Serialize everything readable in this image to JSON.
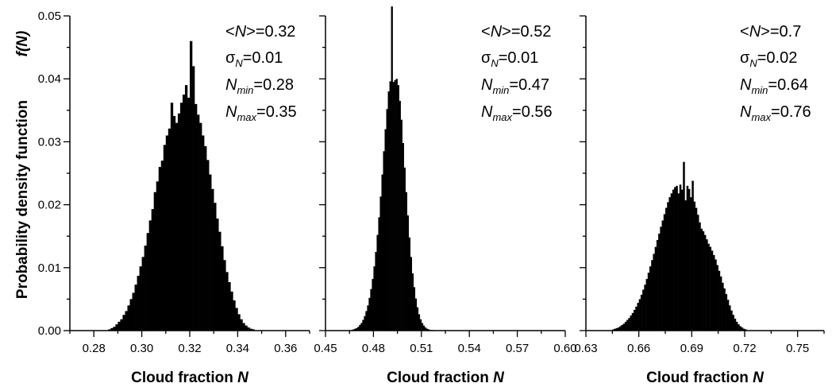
{
  "figure": {
    "ylabel": "Probability density function",
    "ylabel_symbol": "f(N)"
  },
  "chart_data": [
    {
      "type": "bar",
      "xlabel_text": "Cloud fraction ",
      "xlabel_symbol": "N",
      "xlim": [
        0.27,
        0.37
      ],
      "ylim": [
        0.0,
        0.05
      ],
      "xticks": [
        "0.28",
        "0.30",
        "0.32",
        "0.34",
        "0.36"
      ],
      "yticks": [
        "0.00",
        "0.01",
        "0.02",
        "0.03",
        "0.04",
        "0.05"
      ],
      "stats": {
        "mean": "=0.32",
        "sigma": "=0.01",
        "nmin": "=0.28",
        "nmax": "=0.35"
      },
      "bin_start": 0.286,
      "bin_width": 0.001,
      "values": [
        0.0002,
        0.0004,
        0.0006,
        0.001,
        0.0014,
        0.0018,
        0.0025,
        0.0031,
        0.004,
        0.005,
        0.006,
        0.0073,
        0.0087,
        0.0102,
        0.0117,
        0.0135,
        0.0155,
        0.0175,
        0.0193,
        0.022,
        0.0237,
        0.026,
        0.027,
        0.0295,
        0.031,
        0.0321,
        0.0362,
        0.0341,
        0.033,
        0.0345,
        0.0362,
        0.0375,
        0.039,
        0.037,
        0.046,
        0.042,
        0.036,
        0.0343,
        0.033,
        0.031,
        0.0293,
        0.0271,
        0.0248,
        0.0225,
        0.0203,
        0.0178,
        0.0157,
        0.0134,
        0.0112,
        0.0093,
        0.0077,
        0.0062,
        0.0048,
        0.0036,
        0.0026,
        0.0018,
        0.0012,
        0.0008,
        0.0005,
        0.0003,
        0.0002
      ]
    },
    {
      "type": "bar",
      "xlabel_text": "Cloud fraction ",
      "xlabel_symbol": "N",
      "xlim": [
        0.45,
        0.6
      ],
      "ylim": [
        0.0,
        0.05
      ],
      "xticks": [
        "0.45",
        "0.48",
        "0.51",
        "0.54",
        "0.57",
        "0.60"
      ],
      "stats": {
        "mean": "=0.52",
        "sigma": "=0.01",
        "nmin": "=0.47",
        "nmax": "=0.56"
      },
      "bin_start": 0.466,
      "bin_width": 0.001,
      "values": [
        0.0001,
        0.0002,
        0.0003,
        0.0004,
        0.0006,
        0.0009,
        0.0012,
        0.0017,
        0.0023,
        0.0031,
        0.004,
        0.0052,
        0.0066,
        0.0082,
        0.0102,
        0.0125,
        0.0152,
        0.018,
        0.0213,
        0.0248,
        0.0285,
        0.032,
        0.0352,
        0.038,
        0.0396,
        0.0515,
        0.0395,
        0.0398,
        0.04,
        0.039,
        0.0365,
        0.0335,
        0.0298,
        0.0259,
        0.022,
        0.0183,
        0.0148,
        0.0117,
        0.0091,
        0.0069,
        0.0051,
        0.0037,
        0.0026,
        0.0018,
        0.0012,
        0.0008,
        0.0005,
        0.0003,
        0.0002,
        0.0001,
        0.0001
      ]
    },
    {
      "type": "bar",
      "xlabel_text": "Cloud fraction ",
      "xlabel_symbol": "N",
      "xlim": [
        0.63,
        0.765
      ],
      "ylim": [
        0.0,
        0.05
      ],
      "xticks": [
        "0.63",
        "0.66",
        "0.69",
        "0.72",
        "0.75"
      ],
      "stats": {
        "mean": "=0.7",
        "sigma": "=0.02",
        "nmin": "=0.64",
        "nmax": "=0.76"
      },
      "bin_start": 0.645,
      "bin_width": 0.001,
      "values": [
        0.0002,
        0.0003,
        0.0004,
        0.0005,
        0.0007,
        0.0009,
        0.0011,
        0.0014,
        0.0017,
        0.002,
        0.0024,
        0.0028,
        0.0033,
        0.0038,
        0.0044,
        0.005,
        0.0057,
        0.0065,
        0.0073,
        0.0082,
        0.0092,
        0.0102,
        0.0112,
        0.0122,
        0.0133,
        0.0144,
        0.0154,
        0.0165,
        0.0175,
        0.0185,
        0.0195,
        0.0204,
        0.0212,
        0.0218,
        0.0224,
        0.0228,
        0.023,
        0.0218,
        0.0232,
        0.0224,
        0.0268,
        0.0207,
        0.023,
        0.0225,
        0.0212,
        0.0238,
        0.0205,
        0.0195,
        0.0184,
        0.0172,
        0.0162,
        0.0158,
        0.0152,
        0.0145,
        0.0138,
        0.0133,
        0.0127,
        0.012,
        0.0113,
        0.0104,
        0.0095,
        0.0086,
        0.0076,
        0.0067,
        0.0058,
        0.0049,
        0.004,
        0.0032,
        0.0025,
        0.0019,
        0.0014,
        0.001,
        0.0007,
        0.0005,
        0.0003,
        0.0002
      ]
    }
  ]
}
